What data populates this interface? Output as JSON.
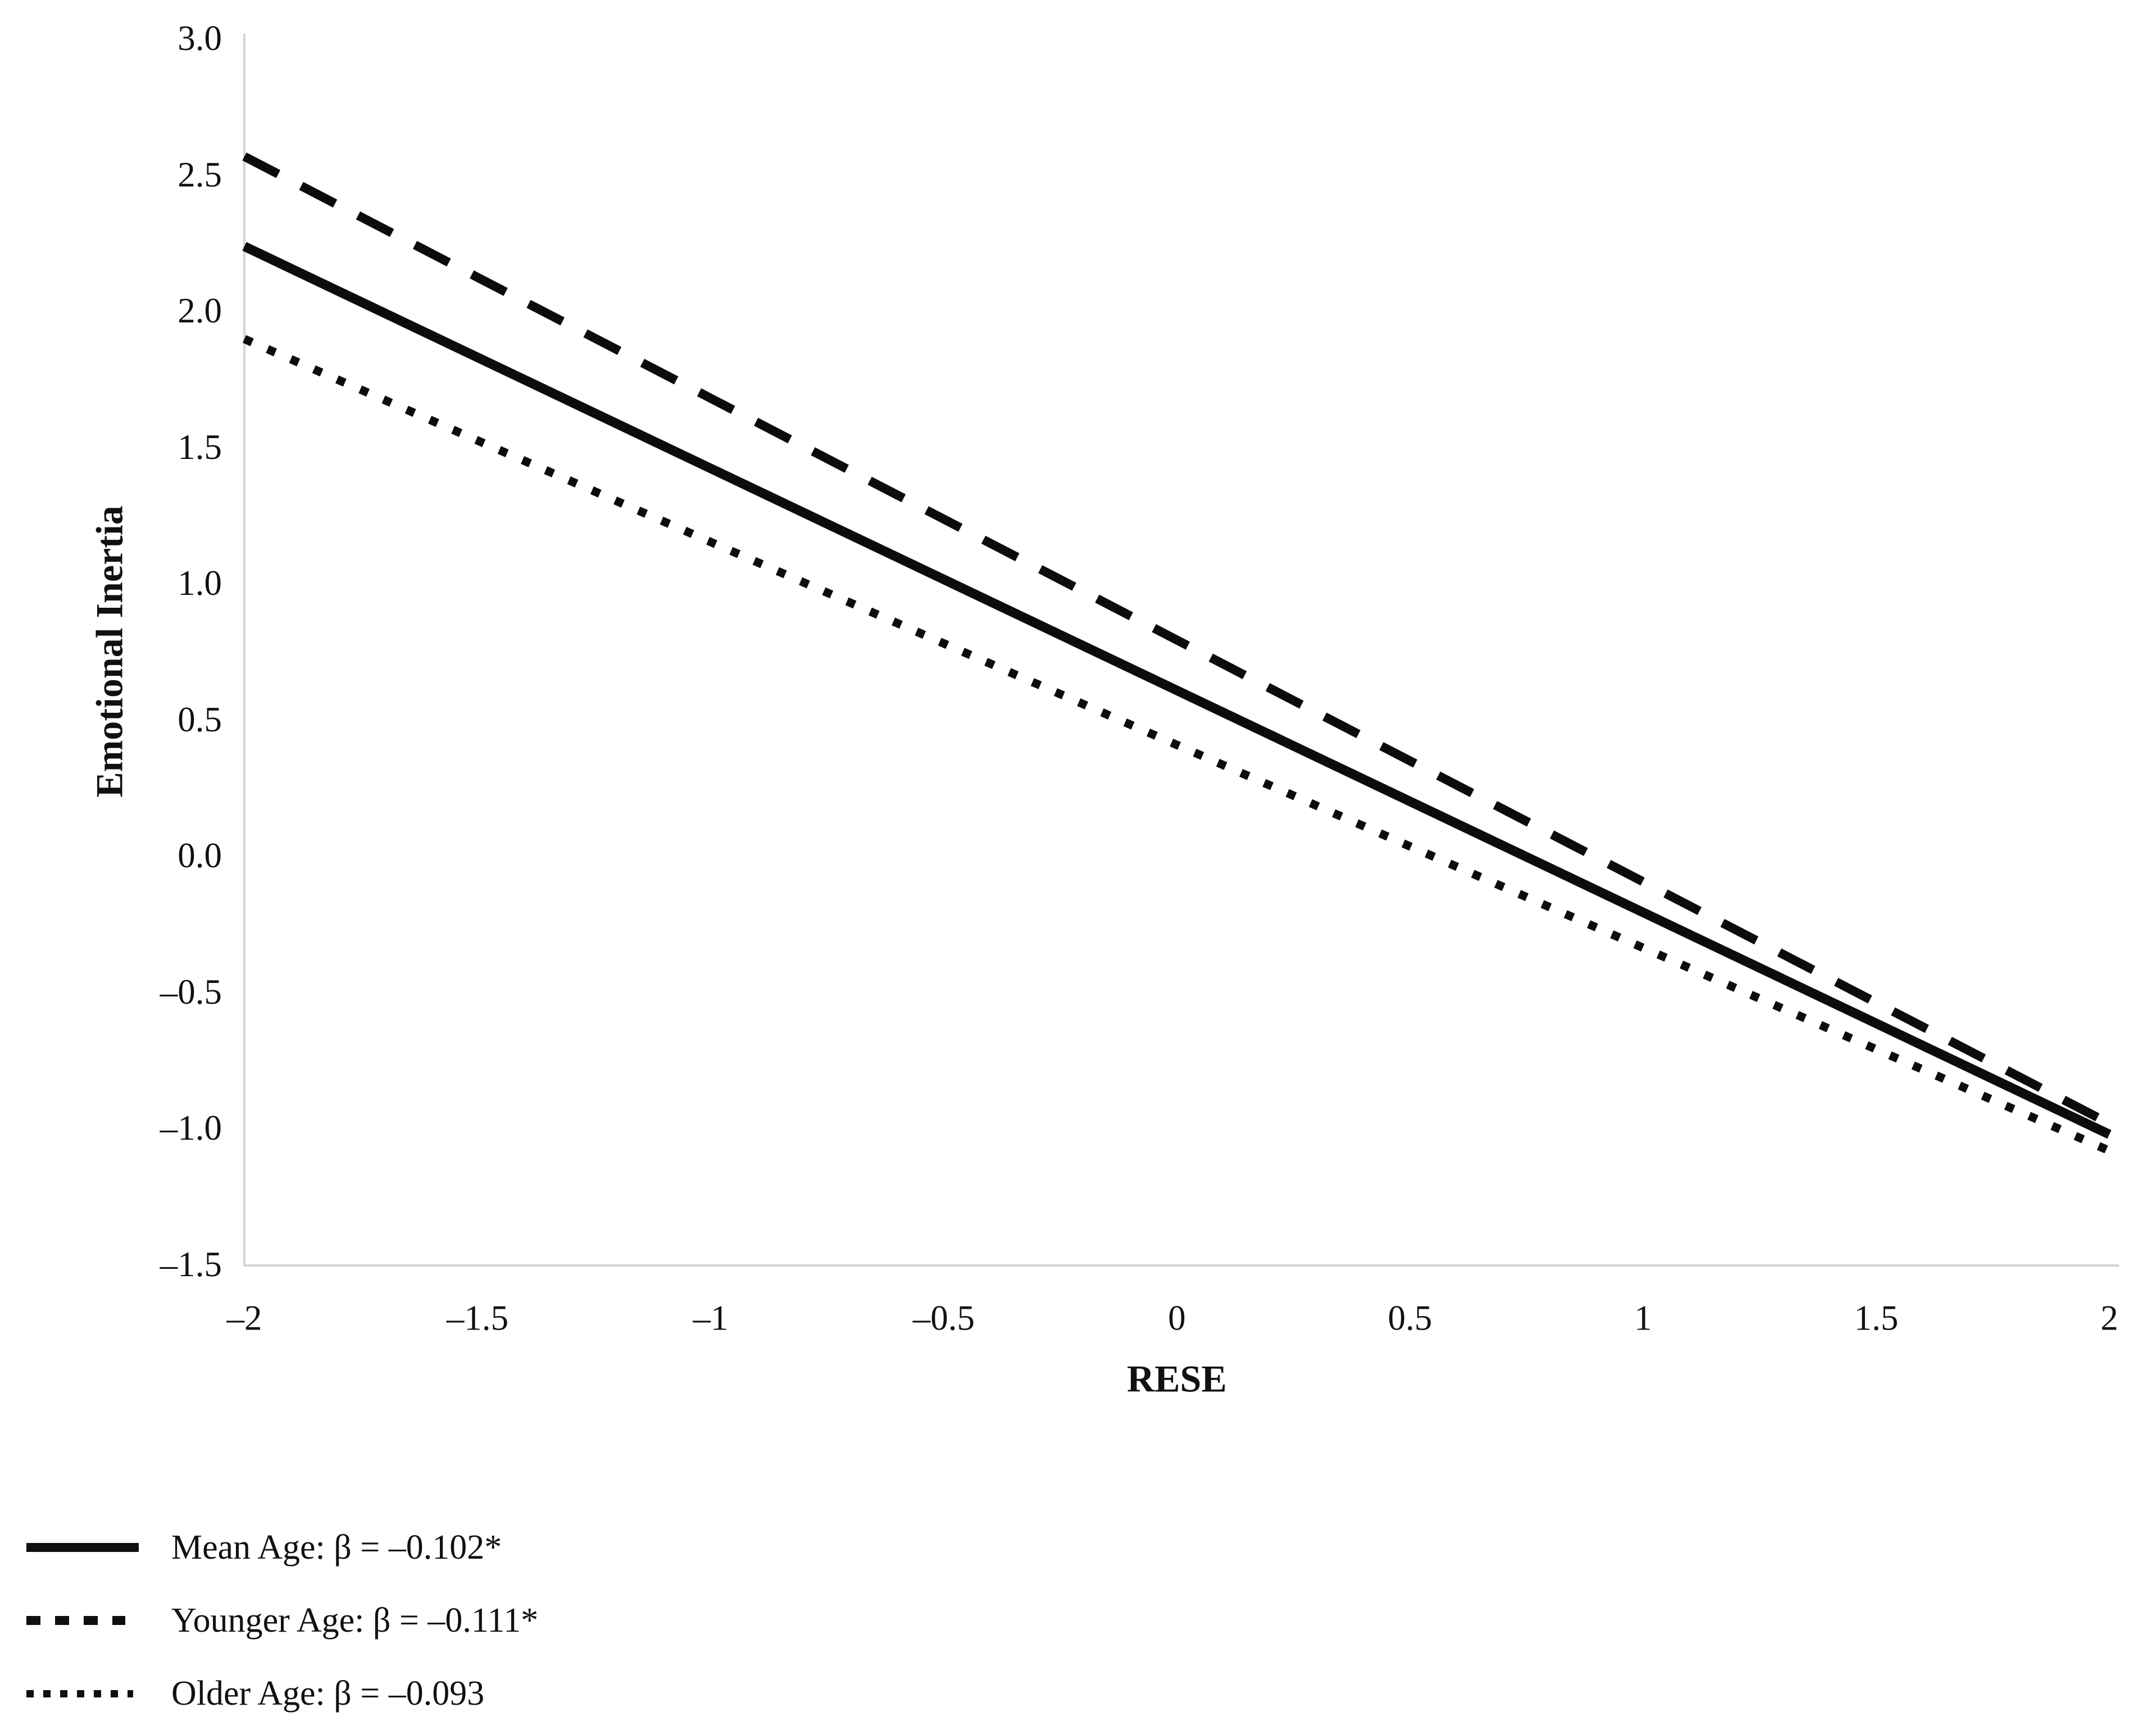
{
  "figure": {
    "background": "#ffffff",
    "text_color": "#111111",
    "axis_line_color": "#d4d4d4",
    "line_color": "#0c0c0c"
  },
  "chart_data": {
    "type": "line",
    "title": "",
    "xlabel": "RESE",
    "ylabel": "Emotional Inertia",
    "xlim": [
      -2,
      2
    ],
    "ylim": [
      -1.5,
      3.0
    ],
    "grid": false,
    "legend_position": "bottom-left",
    "x_ticks": [
      -2,
      -1.5,
      -1,
      -0.5,
      0,
      0.5,
      1,
      1.5,
      2
    ],
    "x_tick_labels": [
      "–2",
      "–1.5",
      "–1",
      "–0.5",
      "0",
      "0.5",
      "1",
      "1.5",
      "2"
    ],
    "y_ticks": [
      3.0,
      2.5,
      2.0,
      1.5,
      1.0,
      0.5,
      0.0,
      -0.5,
      -1.0,
      -1.5
    ],
    "y_tick_labels": [
      "3.0",
      "2.5",
      "2.0",
      "1.5",
      "1.0",
      "0.5",
      "0.0",
      "–0.5",
      "–1.0",
      "–1.5"
    ],
    "series": [
      {
        "name": "Mean Age",
        "label": "Mean Age: β = –0.102*",
        "beta": -0.102,
        "line_style": "solid",
        "x": [
          -2,
          2
        ],
        "y": [
          2.24,
          -1.02
        ]
      },
      {
        "name": "Younger Age",
        "label": "Younger Age: β = –0.111*",
        "beta": -0.111,
        "line_style": "dashed",
        "x": [
          -2,
          2
        ],
        "y": [
          2.57,
          -0.98
        ]
      },
      {
        "name": "Older Age",
        "label": "Older Age: β = –0.093",
        "beta": -0.093,
        "line_style": "dotted",
        "x": [
          -2,
          2
        ],
        "y": [
          1.9,
          -1.08
        ]
      }
    ]
  }
}
